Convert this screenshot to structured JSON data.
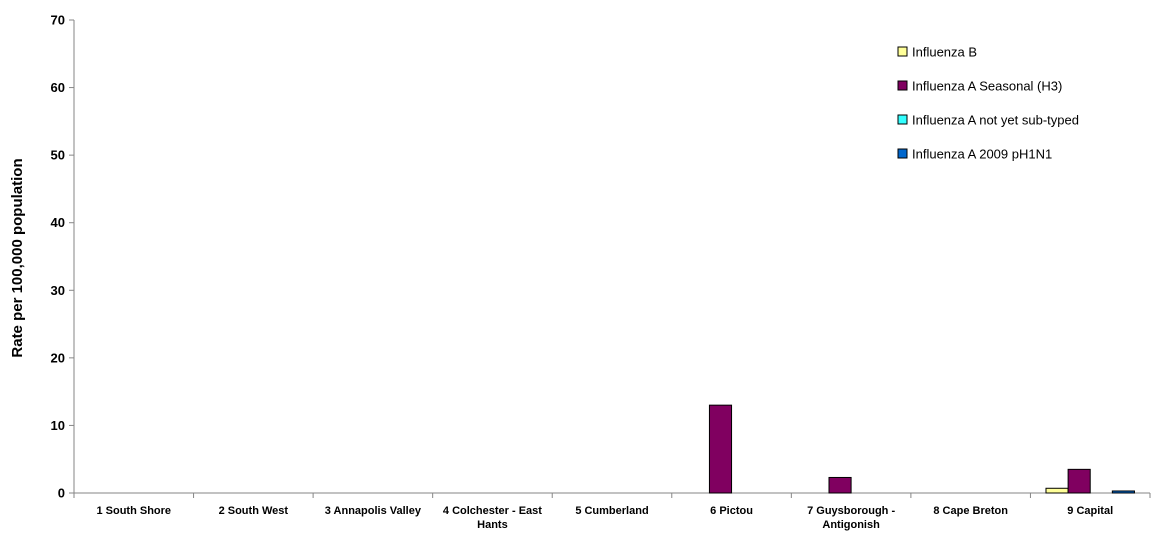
{
  "chart_data": {
    "type": "bar",
    "title": "",
    "xlabel": "",
    "ylabel": "Rate per 100,000 population",
    "ylim": [
      0,
      70
    ],
    "yticks": [
      0,
      10,
      20,
      30,
      40,
      50,
      60,
      70
    ],
    "grid": false,
    "legend_position": "top-right",
    "categories": [
      [
        "1 South Shore"
      ],
      [
        "2 South West"
      ],
      [
        "3 Annapolis Valley"
      ],
      [
        "4 Colchester - East",
        "Hants"
      ],
      [
        "5 Cumberland"
      ],
      [
        "6 Pictou"
      ],
      [
        "7 Guysborough -",
        "Antigonish"
      ],
      [
        "8 Cape Breton"
      ],
      [
        "9 Capital"
      ]
    ],
    "series": [
      {
        "name": "Influenza B",
        "color": "#FFFF99",
        "values": [
          0,
          0,
          0,
          0,
          0,
          0,
          0,
          0,
          0.7
        ]
      },
      {
        "name": "Influenza A Seasonal (H3)",
        "color": "#800060",
        "values": [
          0,
          0,
          0,
          0,
          0,
          13.0,
          2.3,
          0,
          3.5
        ]
      },
      {
        "name": "Influenza A not yet sub-typed",
        "color": "#33FFFF",
        "values": [
          0,
          0,
          0,
          0,
          0,
          0,
          0,
          0,
          0
        ]
      },
      {
        "name": "Influenza A 2009 pH1N1",
        "color": "#0066CC",
        "values": [
          0,
          0,
          0,
          0,
          0,
          0,
          0,
          0,
          0.3
        ]
      }
    ]
  }
}
